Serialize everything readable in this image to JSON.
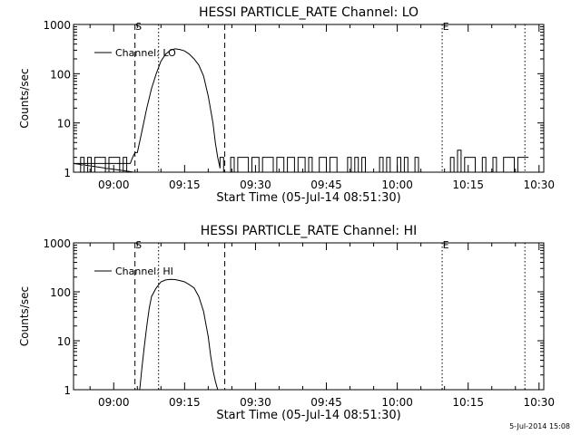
{
  "chart_data": [
    {
      "type": "line",
      "title": "HESSI PARTICLE_RATE Channel: LO",
      "xlabel": "Start Time (05-Jul-14 08:51:30)",
      "ylabel": "Counts/sec",
      "yscale": "log",
      "ylim": [
        1,
        1000
      ],
      "xlim": [
        "08:51:30",
        "10:31:00"
      ],
      "x_ticks": [
        "09:00",
        "09:15",
        "09:30",
        "09:45",
        "10:00",
        "10:15",
        "10:30"
      ],
      "y_ticks": [
        "1",
        "10",
        "100",
        "1000"
      ],
      "legend": "top-left",
      "grid": false,
      "markers": [
        {
          "label": "S",
          "time": "09:04:30",
          "style": "dashed"
        },
        {
          "label": "",
          "time": "09:09:30",
          "style": "dotted"
        },
        {
          "label": "",
          "time": "09:23:30",
          "style": "dashed"
        },
        {
          "label": "E",
          "time": "10:09:30",
          "style": "dotted"
        },
        {
          "label": "",
          "time": "10:27:00",
          "style": "dotted"
        }
      ],
      "series": [
        {
          "name": "Channel: LO",
          "color": "#000000",
          "x": [
            "08:51:30",
            "09:03:30",
            "09:04:00",
            "09:04:30",
            "09:05:00",
            "09:06:00",
            "09:07:00",
            "09:08:00",
            "09:09:00",
            "09:10:00",
            "09:11:00",
            "09:12:00",
            "09:13:00",
            "09:14:00",
            "09:15:00",
            "09:16:00",
            "09:17:00",
            "09:18:00",
            "09:19:00",
            "09:20:00",
            "09:21:00",
            "09:21:30",
            "09:22:00",
            "09:22:30"
          ],
          "y": [
            1.5,
            1.5,
            2,
            2.5,
            2.5,
            7,
            20,
            50,
            100,
            180,
            250,
            300,
            320,
            310,
            290,
            250,
            200,
            150,
            90,
            35,
            10,
            4,
            2,
            1.2
          ],
          "noise_level": [
            1,
            2
          ],
          "noise_ranges": [
            [
              "08:51:30",
              "09:03:30"
            ],
            [
              "09:22:30",
              "10:27:00"
            ]
          ],
          "spike": {
            "time": "10:13:00",
            "value": 2.8
          }
        }
      ]
    },
    {
      "type": "line",
      "title": "HESSI PARTICLE_RATE Channel: HI",
      "xlabel": "Start Time (05-Jul-14 08:51:30)",
      "ylabel": "Counts/sec",
      "yscale": "log",
      "ylim": [
        1,
        1000
      ],
      "xlim": [
        "08:51:30",
        "10:31:00"
      ],
      "x_ticks": [
        "09:00",
        "09:15",
        "09:30",
        "09:45",
        "10:00",
        "10:15",
        "10:30"
      ],
      "y_ticks": [
        "1",
        "10",
        "100",
        "1000"
      ],
      "legend": "top-left",
      "grid": false,
      "markers": [
        {
          "label": "S",
          "time": "09:04:30",
          "style": "dashed"
        },
        {
          "label": "",
          "time": "09:09:30",
          "style": "dotted"
        },
        {
          "label": "",
          "time": "09:23:30",
          "style": "dashed"
        },
        {
          "label": "E",
          "time": "10:09:30",
          "style": "dotted"
        },
        {
          "label": "",
          "time": "10:27:00",
          "style": "dotted"
        }
      ],
      "series": [
        {
          "name": "Channel: HI",
          "color": "#000000",
          "x": [
            "09:05:30",
            "09:06:00",
            "09:06:30",
            "09:07:00",
            "09:07:30",
            "09:08:00",
            "09:09:00",
            "09:10:00",
            "09:11:00",
            "09:12:00",
            "09:13:00",
            "09:14:00",
            "09:15:00",
            "09:16:00",
            "09:17:00",
            "09:18:00",
            "09:19:00",
            "09:20:00",
            "09:20:30",
            "09:21:00",
            "09:21:30",
            "09:22:00"
          ],
          "y": [
            1,
            3,
            8,
            20,
            45,
            80,
            120,
            160,
            175,
            180,
            178,
            170,
            160,
            140,
            120,
            80,
            40,
            12,
            5,
            2.5,
            1.5,
            1
          ]
        }
      ]
    }
  ],
  "footer": {
    "timestamp": "5-Jul-2014 15:08"
  }
}
